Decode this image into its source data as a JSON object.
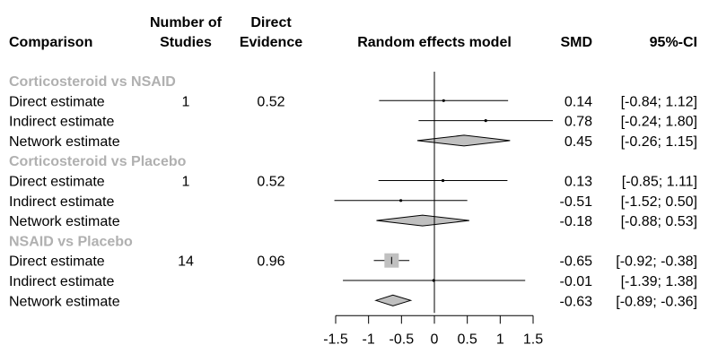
{
  "chart_data": {
    "type": "forest",
    "headers": {
      "comparison": "Comparison",
      "studies_line1": "Number of",
      "studies_line2": "Studies",
      "direct_line1": "Direct",
      "direct_line2": "Evidence",
      "model": "Random effects model",
      "smd": "SMD",
      "ci": "95%-CI"
    },
    "xlim": [
      -1.5,
      1.5
    ],
    "x_ticks": [
      "-1.5",
      "-1",
      "-0.5",
      "0",
      "0.5",
      "1",
      "1.5"
    ],
    "x_tick_values": [
      -1.5,
      -1,
      -0.5,
      0,
      0.5,
      1,
      1.5
    ],
    "groups": [
      {
        "name": "Corticosteroid vs NSAID",
        "rows": [
          {
            "label": "Direct estimate",
            "studies": "1",
            "direct": "0.52",
            "smd": 0.14,
            "lower": -0.84,
            "upper": 1.12,
            "smd_text": "0.14",
            "ci_text": "[-0.84;  1.12]",
            "kind": "point"
          },
          {
            "label": "Indirect estimate",
            "studies": "",
            "direct": "",
            "smd": 0.78,
            "lower": -0.24,
            "upper": 1.8,
            "smd_text": "0.78",
            "ci_text": "[-0.24;  1.80]",
            "kind": "point"
          },
          {
            "label": "Network estimate",
            "studies": "",
            "direct": "",
            "smd": 0.45,
            "lower": -0.26,
            "upper": 1.15,
            "smd_text": "0.45",
            "ci_text": "[-0.26;  1.15]",
            "kind": "diamond"
          }
        ]
      },
      {
        "name": "Corticosteroid vs Placebo",
        "rows": [
          {
            "label": "Direct estimate",
            "studies": "1",
            "direct": "0.52",
            "smd": 0.13,
            "lower": -0.85,
            "upper": 1.11,
            "smd_text": "0.13",
            "ci_text": "[-0.85;  1.11]",
            "kind": "point"
          },
          {
            "label": "Indirect estimate",
            "studies": "",
            "direct": "",
            "smd": -0.51,
            "lower": -1.52,
            "upper": 0.5,
            "smd_text": "-0.51",
            "ci_text": "[-1.52;  0.50]",
            "kind": "point"
          },
          {
            "label": "Network estimate",
            "studies": "",
            "direct": "",
            "smd": -0.18,
            "lower": -0.88,
            "upper": 0.53,
            "smd_text": "-0.18",
            "ci_text": "[-0.88;  0.53]",
            "kind": "diamond"
          }
        ]
      },
      {
        "name": "NSAID vs Placebo",
        "rows": [
          {
            "label": "Direct estimate",
            "studies": "14",
            "direct": "0.96",
            "smd": -0.65,
            "lower": -0.92,
            "upper": -0.38,
            "smd_text": "-0.65",
            "ci_text": "[-0.92; -0.38]",
            "kind": "square"
          },
          {
            "label": "Indirect estimate",
            "studies": "",
            "direct": "",
            "smd": -0.01,
            "lower": -1.39,
            "upper": 1.38,
            "smd_text": "-0.01",
            "ci_text": "[-1.39;  1.38]",
            "kind": "point"
          },
          {
            "label": "Network estimate",
            "studies": "",
            "direct": "",
            "smd": -0.63,
            "lower": -0.89,
            "upper": -0.36,
            "smd_text": "-0.63",
            "ci_text": "[-0.89; -0.36]",
            "kind": "diamond"
          }
        ]
      }
    ],
    "colors": {
      "diamond_fill": "#c0c0c0",
      "square_fill": "#c0c0c0",
      "group_text": "#b0b0b0"
    }
  }
}
